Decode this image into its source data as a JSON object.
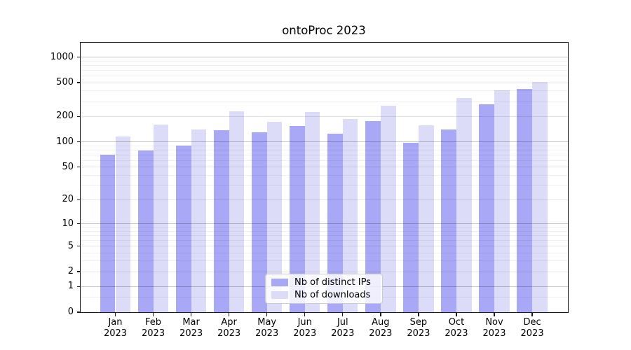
{
  "title": "ontoProc 2023",
  "colors": {
    "distinct_ips": "#a8a8f6",
    "downloads": "#dcdcf9",
    "spine": "#1a1a1a"
  },
  "legend": {
    "items": [
      {
        "label": "Nb of distinct IPs",
        "series": "distinct_ips"
      },
      {
        "label": "Nb of downloads",
        "series": "downloads"
      }
    ]
  },
  "axes": {
    "y_tick_labels": [
      0,
      1,
      2,
      5,
      10,
      20,
      50,
      100,
      200,
      500,
      1000
    ],
    "y_minor_gridlines": [
      0.5,
      2,
      3,
      4,
      5,
      6,
      7,
      8,
      9,
      20,
      30,
      40,
      50,
      60,
      70,
      80,
      90,
      200,
      300,
      400,
      500,
      600,
      700,
      800,
      900
    ],
    "y_major_gridlines": [
      1,
      10,
      100,
      1000
    ],
    "x_year": "2023"
  },
  "chart_data": {
    "type": "bar",
    "title": "ontoProc 2023",
    "categories": [
      "Jan",
      "Feb",
      "Mar",
      "Apr",
      "May",
      "Jun",
      "Jul",
      "Aug",
      "Sep",
      "Oct",
      "Nov",
      "Dec"
    ],
    "category_year": "2023",
    "series": [
      {
        "name": "Nb of distinct IPs",
        "color": "#a8a8f6",
        "values": [
          70,
          79,
          90,
          138,
          130,
          153,
          126,
          176,
          97,
          140,
          277,
          425
        ]
      },
      {
        "name": "Nb of downloads",
        "color": "#dcdcf9",
        "values": [
          115,
          160,
          139,
          232,
          172,
          226,
          186,
          270,
          156,
          328,
          409,
          514
        ]
      }
    ],
    "xlabel": "",
    "ylabel": "",
    "yscale": "log10(value+1)",
    "y_ticks": [
      0,
      1,
      2,
      5,
      10,
      20,
      50,
      100,
      200,
      500,
      1000
    ],
    "ylim": [
      0,
      1480
    ],
    "grid": "horizontal, drawn over bars",
    "legend_position": "inside lower-center"
  }
}
